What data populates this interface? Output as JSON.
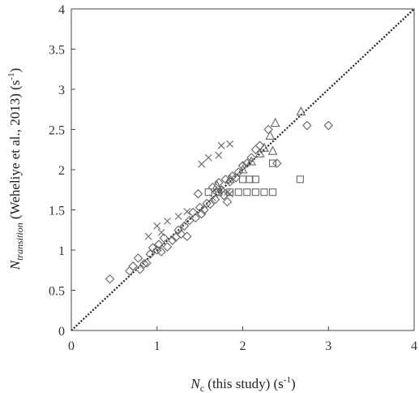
{
  "chart_data": {
    "type": "scatter",
    "title": "",
    "xlabel": {
      "sym": "N",
      "sub": "c",
      "rest": " (this study) (s",
      "sup": "-1",
      "close": ")"
    },
    "ylabel": {
      "sym": "N",
      "sub": "transition",
      "rest": " (Weheliye et al., 2013) (s",
      "sup": "-1",
      "close": ")"
    },
    "xlim": [
      0,
      4
    ],
    "ylim": [
      0,
      4
    ],
    "xticks": [
      "0",
      "1",
      "2",
      "3",
      "4"
    ],
    "yticks": [
      "0",
      "0.5",
      "1",
      "1.5",
      "2",
      "2.5",
      "3",
      "3.5",
      "4"
    ],
    "grid": false,
    "reference_line": {
      "style": "dotted",
      "from": [
        0,
        0
      ],
      "to": [
        4,
        4
      ]
    },
    "series": [
      {
        "marker": "diamond",
        "points": [
          [
            0.45,
            0.64
          ],
          [
            0.68,
            0.74
          ],
          [
            0.72,
            0.8
          ],
          [
            0.78,
            0.9
          ],
          [
            0.8,
            0.76
          ],
          [
            0.85,
            0.83
          ],
          [
            0.88,
            0.84
          ],
          [
            0.92,
            0.95
          ],
          [
            0.95,
            1.03
          ],
          [
            1.0,
            1.0
          ],
          [
            1.02,
            1.07
          ],
          [
            1.05,
            0.98
          ],
          [
            1.08,
            1.15
          ],
          [
            1.12,
            1.04
          ],
          [
            1.18,
            1.12
          ],
          [
            1.22,
            1.16
          ],
          [
            1.25,
            1.25
          ],
          [
            1.28,
            1.2
          ],
          [
            1.32,
            1.3
          ],
          [
            1.35,
            1.17
          ],
          [
            1.38,
            1.37
          ],
          [
            1.42,
            1.47
          ],
          [
            1.45,
            1.4
          ],
          [
            1.48,
            1.7
          ],
          [
            1.5,
            1.53
          ],
          [
            1.52,
            1.45
          ],
          [
            1.55,
            1.5
          ],
          [
            1.58,
            1.58
          ],
          [
            1.62,
            1.57
          ],
          [
            1.65,
            1.78
          ],
          [
            1.68,
            1.63
          ],
          [
            1.7,
            1.72
          ],
          [
            1.72,
            1.84
          ],
          [
            1.75,
            1.75
          ],
          [
            1.78,
            1.68
          ],
          [
            1.8,
            1.88
          ],
          [
            1.82,
            1.6
          ],
          [
            1.85,
            1.85
          ],
          [
            1.88,
            1.92
          ],
          [
            1.92,
            1.9
          ],
          [
            1.95,
            1.97
          ],
          [
            2.0,
            2.05
          ],
          [
            2.05,
            2.08
          ],
          [
            2.1,
            2.15
          ],
          [
            2.15,
            2.25
          ],
          [
            2.2,
            2.3
          ],
          [
            2.3,
            2.5
          ],
          [
            2.4,
            2.08
          ],
          [
            2.75,
            2.55
          ],
          [
            3.0,
            2.55
          ]
        ]
      },
      {
        "marker": "square",
        "points": [
          [
            1.6,
            1.72
          ],
          [
            1.72,
            1.72
          ],
          [
            1.85,
            1.72
          ],
          [
            1.95,
            1.72
          ],
          [
            2.05,
            1.72
          ],
          [
            2.15,
            1.72
          ],
          [
            2.25,
            1.72
          ],
          [
            2.35,
            1.72
          ],
          [
            2.0,
            1.88
          ],
          [
            2.08,
            1.88
          ],
          [
            2.15,
            1.88
          ],
          [
            2.35,
            2.08
          ],
          [
            2.67,
            1.88
          ]
        ]
      },
      {
        "marker": "x",
        "points": [
          [
            0.9,
            1.17
          ],
          [
            1.0,
            1.3
          ],
          [
            1.05,
            1.22
          ],
          [
            1.12,
            1.36
          ],
          [
            1.25,
            1.42
          ],
          [
            1.35,
            1.48
          ],
          [
            1.65,
            1.65
          ],
          [
            1.72,
            1.75
          ],
          [
            1.82,
            1.72
          ],
          [
            1.85,
            1.7
          ],
          [
            1.52,
            2.07
          ],
          [
            1.6,
            2.15
          ],
          [
            1.72,
            2.18
          ],
          [
            1.75,
            2.3
          ],
          [
            1.85,
            2.32
          ]
        ]
      },
      {
        "marker": "triangle",
        "points": [
          [
            1.7,
            1.8
          ],
          [
            1.85,
            1.88
          ],
          [
            2.0,
            2.0
          ],
          [
            2.1,
            2.1
          ],
          [
            2.2,
            2.2
          ],
          [
            2.25,
            2.27
          ],
          [
            2.32,
            2.42
          ],
          [
            2.35,
            2.23
          ],
          [
            2.38,
            2.58
          ],
          [
            2.68,
            2.72
          ]
        ]
      }
    ]
  }
}
